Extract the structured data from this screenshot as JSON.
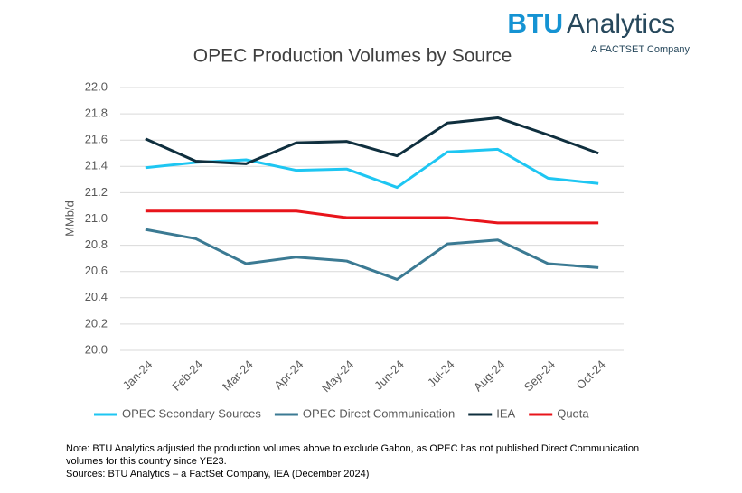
{
  "chart_data": {
    "type": "line",
    "title": "OPEC Production Volumes by Source",
    "y_label": "MMb/d",
    "categories": [
      "Jan-24",
      "Feb-24",
      "Mar-24",
      "Apr-24",
      "May-24",
      "Jun-24",
      "Jul-24",
      "Aug-24",
      "Sep-24",
      "Oct-24"
    ],
    "series": [
      {
        "name": "OPEC Secondary Sources",
        "color": "#1ec6f2",
        "values": [
          21.39,
          21.43,
          21.45,
          21.37,
          21.38,
          21.24,
          21.51,
          21.53,
          21.31,
          21.27
        ]
      },
      {
        "name": "OPEC Direct Communication",
        "color": "#3b7a93",
        "values": [
          20.92,
          20.85,
          20.66,
          20.71,
          20.68,
          20.54,
          20.81,
          20.84,
          20.66,
          20.63
        ]
      },
      {
        "name": "IEA",
        "color": "#0f2f3e",
        "values": [
          21.61,
          21.44,
          21.42,
          21.58,
          21.59,
          21.48,
          21.73,
          21.77,
          21.64,
          21.5
        ]
      },
      {
        "name": "Quota",
        "color": "#e8141b",
        "values": [
          21.06,
          21.06,
          21.06,
          21.06,
          21.01,
          21.01,
          21.01,
          20.97,
          20.97,
          20.97
        ]
      }
    ],
    "ylim": [
      20.0,
      22.0
    ],
    "yticks": [
      {
        "value": 20.0,
        "label": "20.0"
      },
      20.2,
      20.4,
      20.6,
      20.8,
      {
        "value": 21.0,
        "label": "21.0"
      },
      21.2,
      21.4,
      21.6,
      21.8,
      {
        "value": 22.0,
        "label": "22.0"
      }
    ],
    "grid": true,
    "legend": "bottom"
  },
  "logo": {
    "brand": "BTU",
    "name": "Analytics",
    "tagline": "A FACTSET Company"
  },
  "notes": [
    "Note: BTU Analytics adjusted the production volumes above to exclude Gabon, as OPEC has not published Direct Communication",
    "volumes for this country since YE23.",
    "Sources: BTU Analytics – a FactSet Company, IEA (December 2024)"
  ]
}
